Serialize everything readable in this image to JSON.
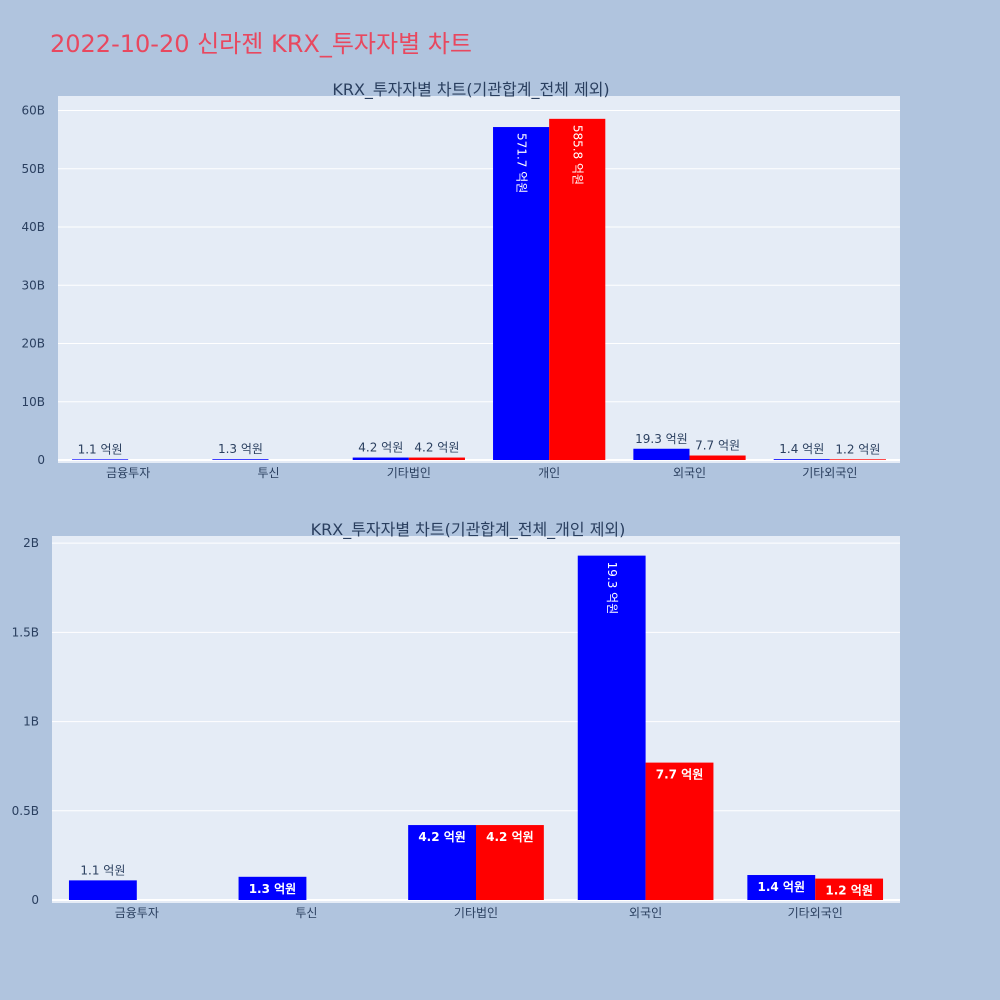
{
  "page_title": "2022-10-20 신라젠 KRX_투자자별 차트",
  "colors": {
    "series_1": "#0000ff",
    "series_2": "#ff0000",
    "plot_bg": "#e5ecf6",
    "page_bg": "#b0c4de",
    "title": "#e8485f"
  },
  "chart_data": [
    {
      "type": "bar",
      "title": "KRX_투자자별 차트(기관합계_전체 제외)",
      "categories": [
        "금융투자",
        "투신",
        "기타법인",
        "개인",
        "외국인",
        "기타외국인"
      ],
      "series": [
        {
          "values": [
            110000000,
            130000000,
            420000000,
            57170000000,
            1930000000,
            140000000
          ],
          "labels": [
            "1.1 억원",
            "1.3 억원",
            "4.2 억원",
            "571.7 억원",
            "19.3 억원",
            "1.4 억원"
          ]
        },
        {
          "values": [
            null,
            null,
            420000000,
            58580000000,
            770000000,
            120000000
          ],
          "labels": [
            "",
            "",
            "4.2 억원",
            "585.8 억원",
            "7.7 억원",
            "1.2 억원"
          ]
        }
      ],
      "ylim": [
        0,
        62500000000
      ],
      "yticks": [
        0,
        10000000000,
        20000000000,
        30000000000,
        40000000000,
        50000000000,
        60000000000
      ],
      "ytick_labels": [
        "0",
        "10B",
        "20B",
        "30B",
        "40B",
        "50B",
        "60B"
      ],
      "grid": true,
      "legend": false
    },
    {
      "type": "bar",
      "title": "KRX_투자자별 차트(기관합계_전체_개인 제외)",
      "categories": [
        "금융투자",
        "투신",
        "기타법인",
        "외국인",
        "기타외국인"
      ],
      "series": [
        {
          "values": [
            110000000,
            130000000,
            420000000,
            1930000000,
            140000000
          ],
          "labels": [
            "1.1 억원",
            "1.3 억원",
            "4.2 억원",
            "19.3 억원",
            "1.4 억원"
          ]
        },
        {
          "values": [
            null,
            null,
            420000000,
            770000000,
            120000000
          ],
          "labels": [
            "",
            "",
            "4.2 억원",
            "7.7 억원",
            "1.2 억원"
          ]
        }
      ],
      "ylim": [
        0,
        2040000000
      ],
      "yticks": [
        0,
        500000000,
        1000000000,
        1500000000,
        2000000000
      ],
      "ytick_labels": [
        "0",
        "0.5B",
        "1B",
        "1.5B",
        "2B"
      ],
      "grid": true,
      "legend": false
    }
  ]
}
